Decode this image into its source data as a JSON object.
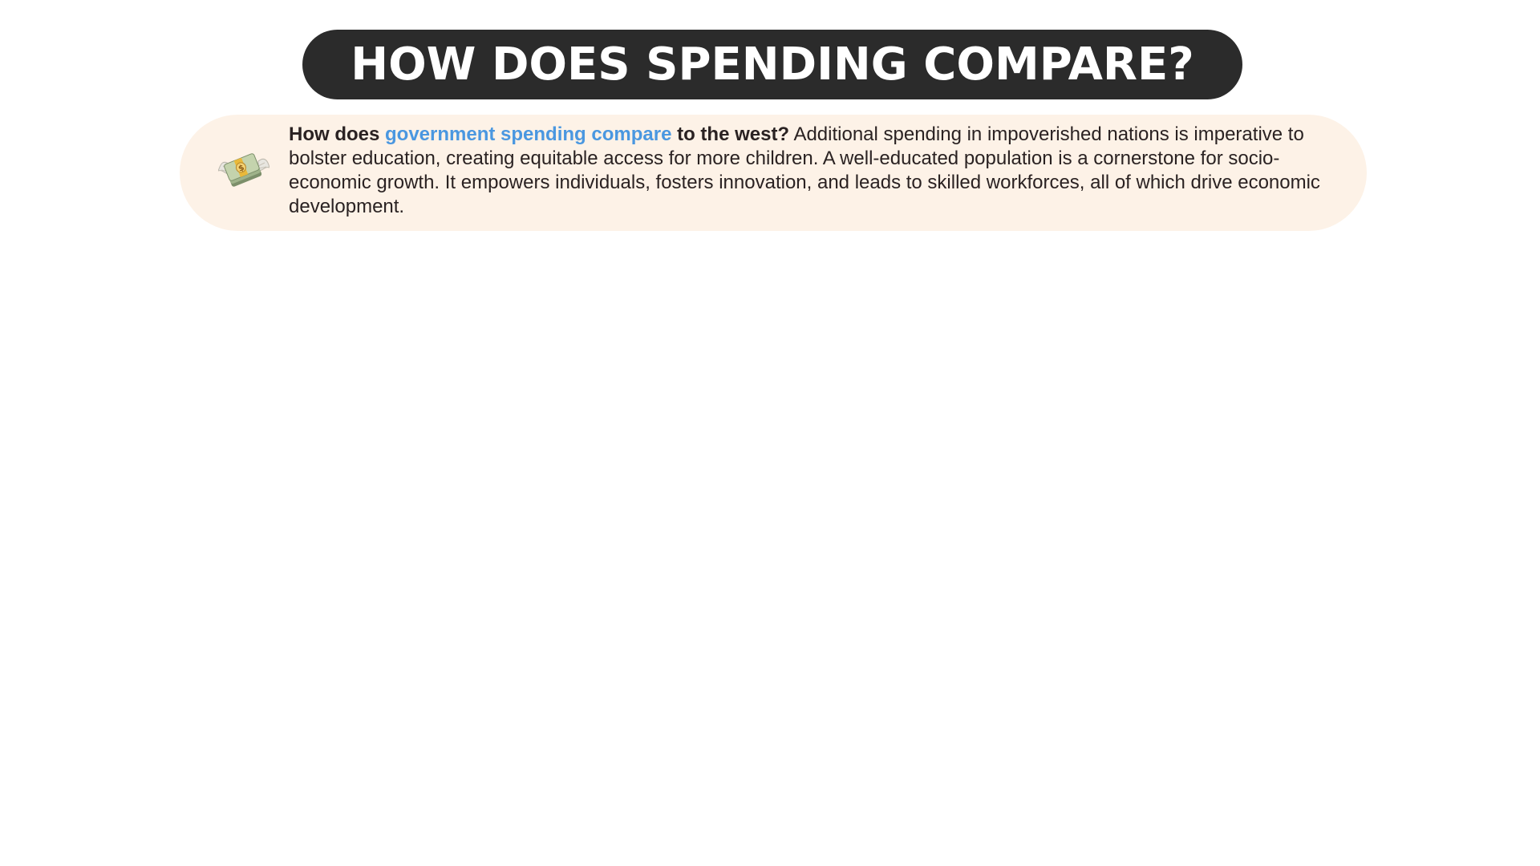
{
  "header": {
    "title": "HOW DOES SPENDING COMPARE?"
  },
  "card": {
    "icon": "money-with-wings-icon",
    "lead_start": "How does ",
    "lead_highlight": "government spending compare",
    "lead_end": " to the west?",
    "body": " Additional spending in impoverished nations is imperative to bolster education, creating equitable access for more children. A well-educated population is a cornerstone for socio-economic growth. It empowers individuals, fosters innovation, and leads to skilled workforces, all of which drive economic development."
  },
  "colors": {
    "title_background": "#2b2b2b",
    "card_background": "#fdf2e7",
    "accent": "#4a97e0",
    "text": "#2a2222"
  }
}
